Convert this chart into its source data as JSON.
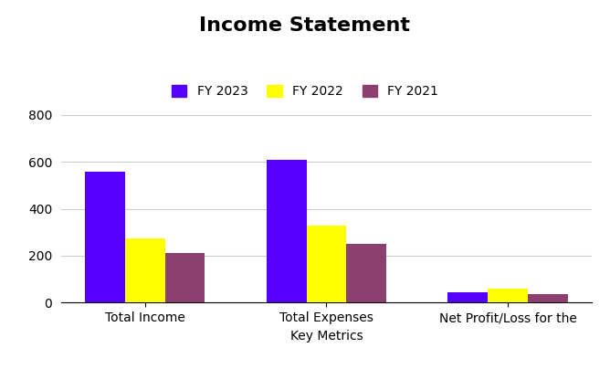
{
  "title": "Income Statement",
  "categories": [
    "Total Income",
    "Total Expenses",
    "Net Profit/Loss for the"
  ],
  "series": [
    {
      "label": "FY 2023",
      "color": "#5500ff",
      "values": [
        560,
        608,
        45
      ]
    },
    {
      "label": "FY 2022",
      "color": "#ffff00",
      "values": [
        272,
        330,
        58
      ]
    },
    {
      "label": "FY 2021",
      "color": "#8B4070",
      "values": [
        213,
        252,
        37
      ]
    }
  ],
  "xlabel": "Key Metrics",
  "ylabel": "",
  "ylim": [
    0,
    850
  ],
  "yticks": [
    0,
    200,
    400,
    600,
    800
  ],
  "background_color": "#ffffff",
  "title_fontsize": 16,
  "legend_fontsize": 10,
  "axis_fontsize": 10,
  "bar_width": 0.22,
  "grid_color": "#cccccc"
}
